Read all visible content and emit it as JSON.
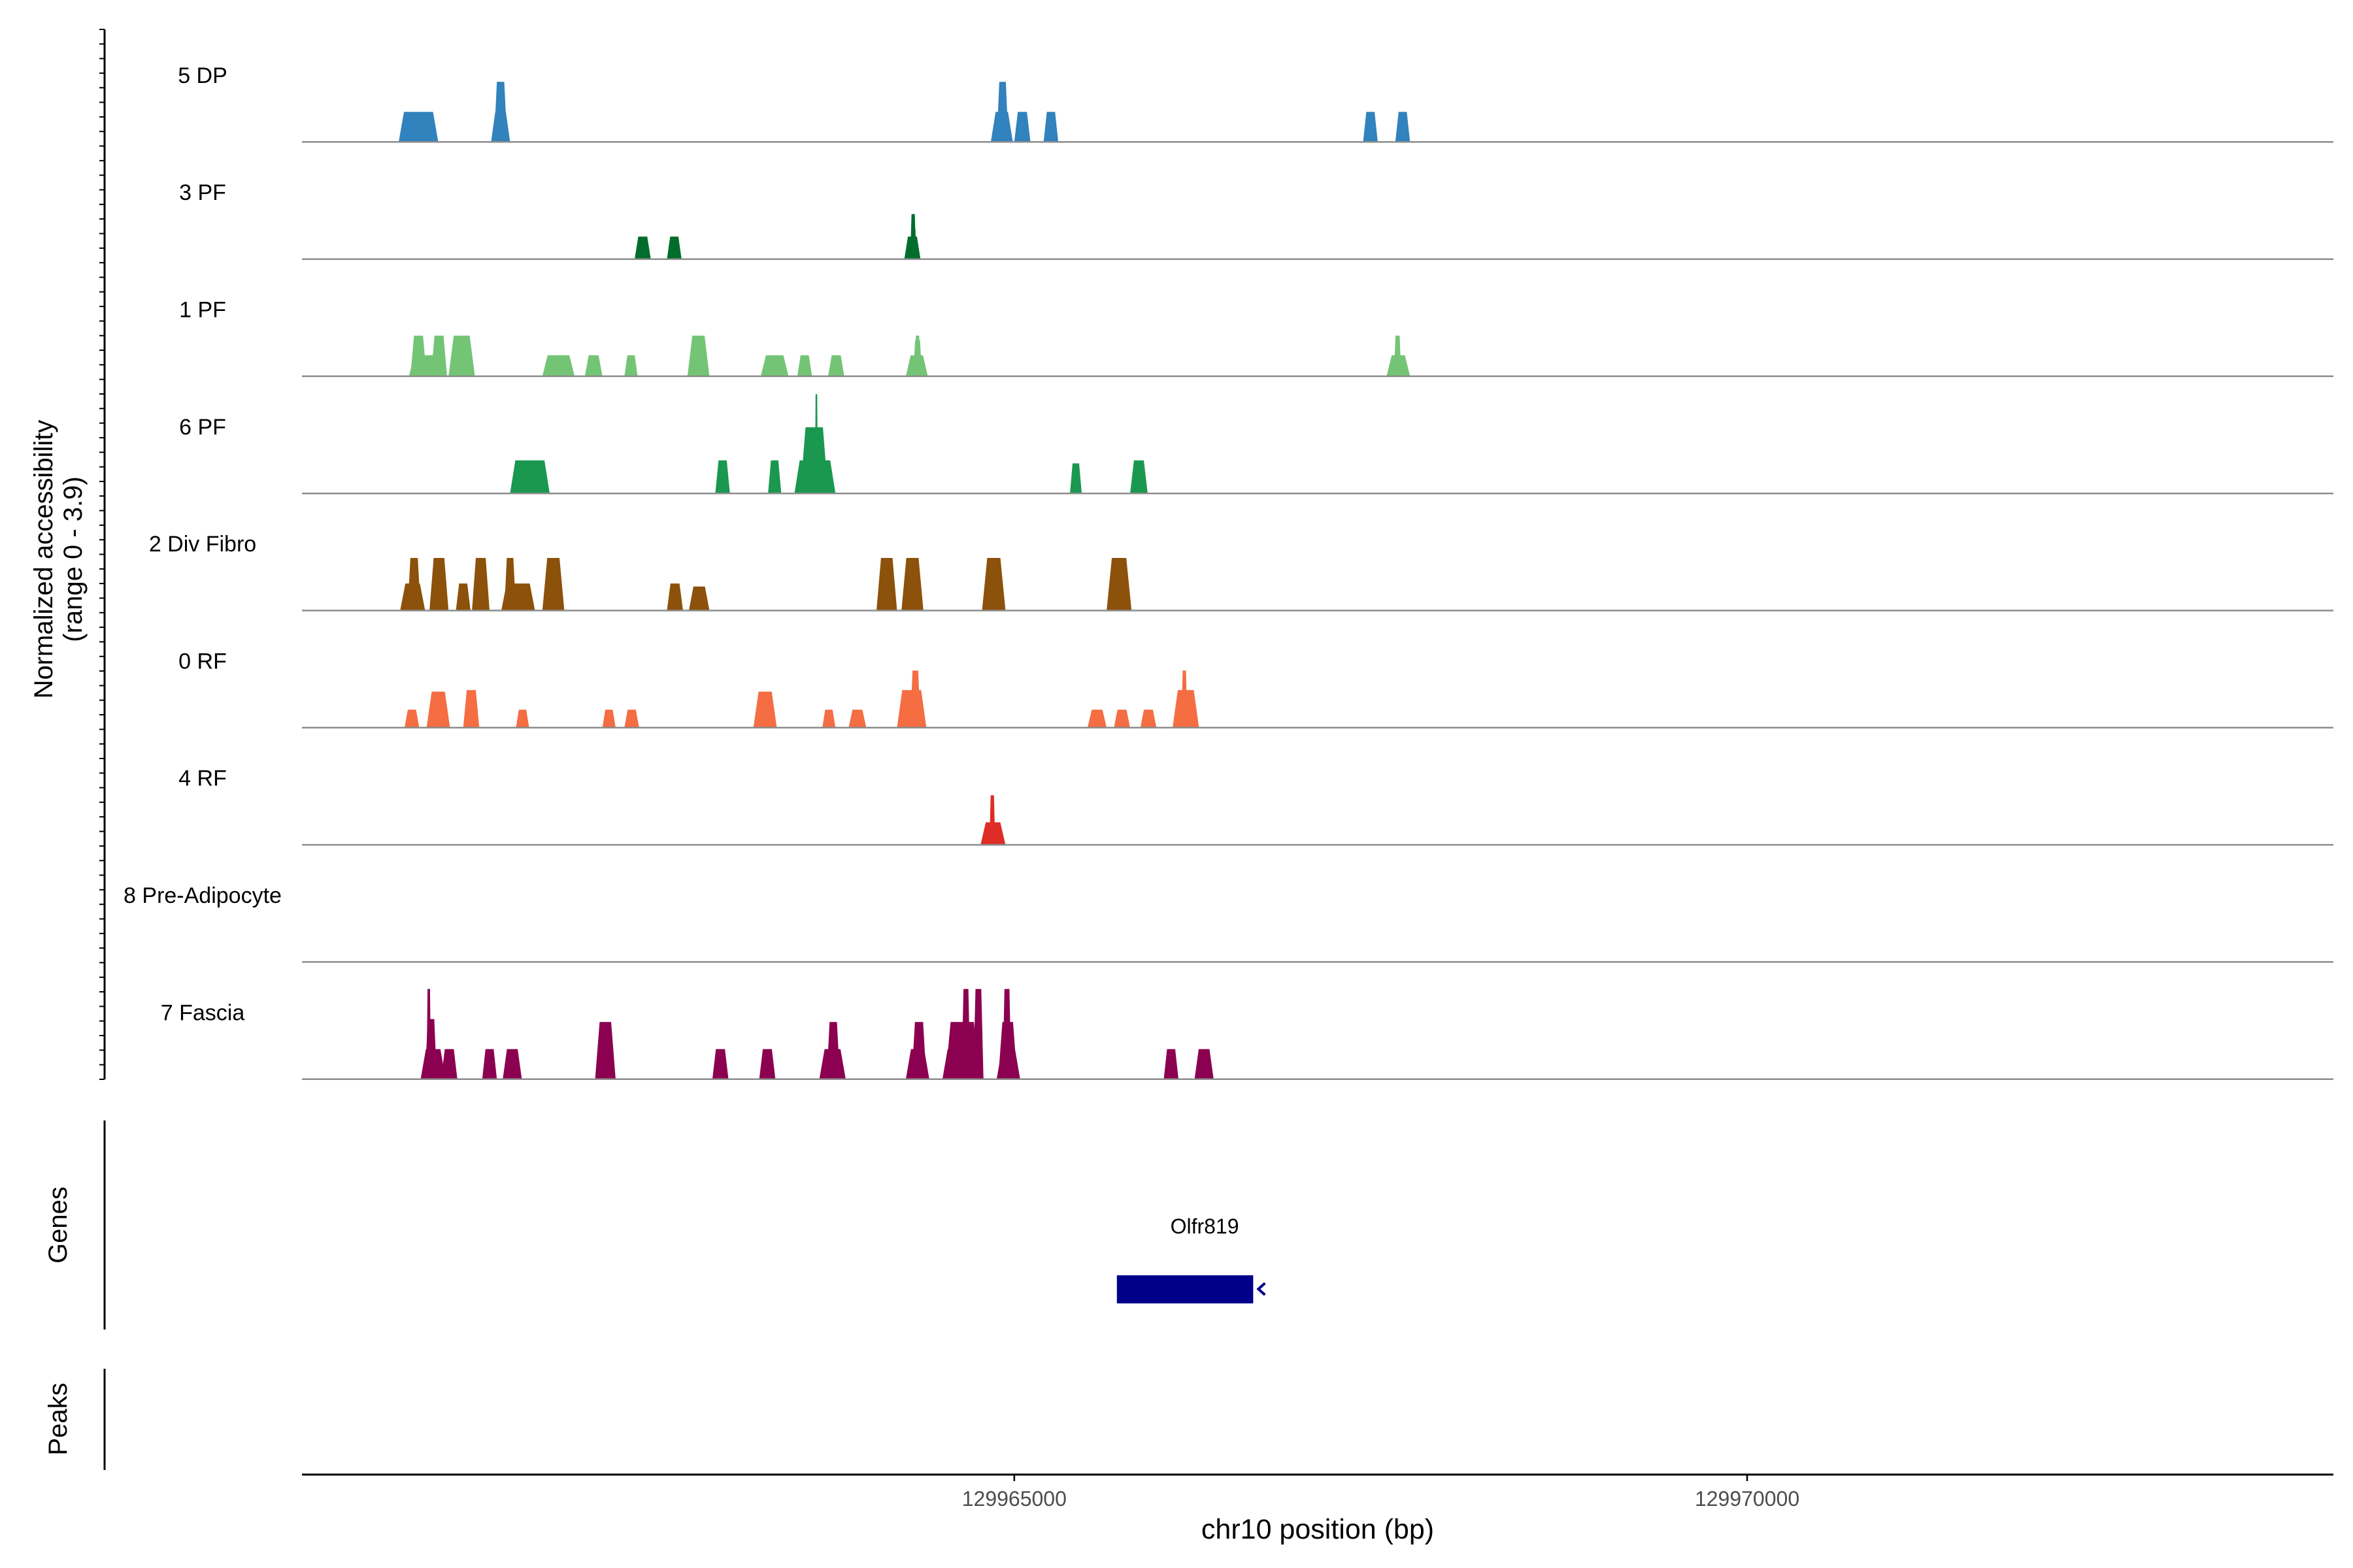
{
  "chart_data": {
    "type": "area",
    "title": "",
    "y_axis_label": "Normalized accessibility",
    "y_axis_range_label": "(range 0 - 3.9)",
    "ylim": [
      0,
      3.9
    ],
    "x_axis_label": "chr10 position (bp)",
    "xlim": [
      129960140,
      129974000
    ],
    "x_ticks": [
      {
        "value": 129965000,
        "label": "129965000"
      },
      {
        "value": 129970000,
        "label": "129970000"
      }
    ],
    "genes_track_label": "Genes",
    "peaks_track_label": "Peaks",
    "genes": [
      {
        "name": "Olfr819",
        "start": 129965700,
        "end": 129966630,
        "strand": "-",
        "color": "#00008b"
      }
    ],
    "tracks": [
      {
        "name": "5 DP",
        "color": "#3182bd",
        "peaks": [
          [
            129960850,
            129961010,
            0.4
          ],
          [
            129960800,
            129961070,
            1.0
          ],
          [
            129961450,
            129961540,
            2.0
          ],
          [
            129961430,
            129961560,
            1.0
          ],
          [
            129964880,
            129964960,
            2.0
          ],
          [
            129964840,
            129964990,
            1.0
          ],
          [
            129965000,
            129965110,
            1.0
          ],
          [
            129965200,
            129965300,
            1.0
          ],
          [
            129967380,
            129967480,
            1.0
          ],
          [
            129967600,
            129967700,
            1.0
          ]
        ]
      },
      {
        "name": "3 PF",
        "color": "#006d2c",
        "peaks": [
          [
            129962410,
            129962520,
            0.75
          ],
          [
            129962630,
            129962730,
            0.75
          ],
          [
            129964250,
            129964360,
            0.75
          ],
          [
            129964290,
            129964330,
            1.5
          ],
          [
            129964310,
            129964330,
            1.0
          ]
        ]
      },
      {
        "name": "1 PF",
        "color": "#74c476",
        "peaks": [
          [
            129960870,
            129961120,
            0.7
          ],
          [
            129960880,
            129960990,
            1.35
          ],
          [
            129961020,
            129961130,
            1.35
          ],
          [
            129961140,
            129961320,
            1.35
          ],
          [
            129961780,
            129962000,
            0.7
          ],
          [
            129962070,
            129962190,
            0.7
          ],
          [
            129962340,
            129962430,
            0.7
          ],
          [
            129962770,
            129962920,
            1.35
          ],
          [
            129963270,
            129963460,
            0.7
          ],
          [
            129963520,
            129963620,
            0.7
          ],
          [
            129963730,
            129963840,
            0.7
          ],
          [
            129964260,
            129964410,
            0.7
          ],
          [
            129964320,
            129964360,
            1.35
          ],
          [
            129964310,
            129964370,
            1.2
          ],
          [
            129967540,
            129967700,
            0.7
          ],
          [
            129967590,
            129967640,
            1.35
          ]
        ]
      },
      {
        "name": "6 PF",
        "color": "#1a9850",
        "peaks": [
          [
            129961560,
            129961830,
            1.1
          ],
          [
            129962960,
            129963060,
            1.1
          ],
          [
            129963320,
            129963410,
            1.1
          ],
          [
            129963500,
            129963780,
            1.1
          ],
          [
            129963540,
            129963730,
            2.2
          ],
          [
            129963580,
            129963690,
            2.2
          ],
          [
            129963640,
            129963660,
            3.3
          ],
          [
            129965380,
            129965460,
            1.0
          ],
          [
            129965790,
            129965910,
            1.1
          ]
        ]
      },
      {
        "name": "2 Div Fibro",
        "color": "#8c510a",
        "peaks": [
          [
            129960810,
            129960980,
            0.9
          ],
          [
            129960860,
            129960950,
            1.75
          ],
          [
            129961010,
            129961140,
            1.75
          ],
          [
            129961040,
            129961140,
            0.9
          ],
          [
            129961190,
            129961290,
            0.9
          ],
          [
            129961300,
            129961420,
            1.75
          ],
          [
            129961500,
            129961730,
            0.9
          ],
          [
            129961520,
            129961600,
            1.75
          ],
          [
            129961780,
            129961930,
            1.75
          ],
          [
            129962630,
            129962740,
            0.9
          ],
          [
            129962780,
            129962920,
            0.8
          ],
          [
            129964060,
            129964200,
            1.75
          ],
          [
            129964230,
            129964380,
            1.75
          ],
          [
            129964780,
            129964940,
            1.75
          ],
          [
            129965630,
            129965800,
            1.75
          ]
        ]
      },
      {
        "name": "0 RF",
        "color": "#f46d43",
        "peaks": [
          [
            129960840,
            129960940,
            0.6
          ],
          [
            129960990,
            129961150,
            1.2
          ],
          [
            129961060,
            129961090,
            1.2
          ],
          [
            129961240,
            129961350,
            1.25
          ],
          [
            129961600,
            129961690,
            0.6
          ],
          [
            129962190,
            129962280,
            0.6
          ],
          [
            129962340,
            129962440,
            0.6
          ],
          [
            129963220,
            129963380,
            1.2
          ],
          [
            129963690,
            129963780,
            0.6
          ],
          [
            129963870,
            129963990,
            0.6
          ],
          [
            129964200,
            129964400,
            1.25
          ],
          [
            129964290,
            129964360,
            1.9
          ],
          [
            129965500,
            129965630,
            0.6
          ],
          [
            129965680,
            129965790,
            0.6
          ],
          [
            129965860,
            129965970,
            0.6
          ],
          [
            129966080,
            129966260,
            1.25
          ],
          [
            129966140,
            129966180,
            1.9
          ]
        ]
      },
      {
        "name": "4 RF",
        "color": "#de2d26",
        "peaks": [
          [
            129964770,
            129964940,
            0.75
          ],
          [
            129964830,
            129964870,
            1.65
          ]
        ]
      },
      {
        "name": "8 Pre-Adipocyte",
        "color": "#762a83",
        "peaks": []
      },
      {
        "name": "7 Fascia",
        "color": "#8b0051",
        "peaks": [
          [
            129960950,
            129961120,
            1.0
          ],
          [
            129960980,
            129961060,
            2.0
          ],
          [
            129960990,
            129961020,
            3.0
          ],
          [
            129961090,
            129961200,
            1.0
          ],
          [
            129961370,
            129961470,
            1.0
          ],
          [
            129961510,
            129961640,
            1.0
          ],
          [
            129962140,
            129962280,
            1.9
          ],
          [
            129962150,
            129962270,
            1.0
          ],
          [
            129962940,
            129963050,
            1.0
          ],
          [
            129963260,
            129963370,
            1.0
          ],
          [
            129963670,
            129963850,
            1.0
          ],
          [
            129963720,
            129963810,
            1.9
          ],
          [
            129964260,
            129964420,
            1.0
          ],
          [
            129964300,
            129964400,
            1.9
          ],
          [
            129964510,
            129964780,
            1.0
          ],
          [
            129964530,
            129964760,
            1.9
          ],
          [
            129964640,
            129964700,
            3.0
          ],
          [
            129964720,
            129964790,
            3.0
          ],
          [
            129964880,
            129965040,
            1.0
          ],
          [
            129964890,
            129965020,
            1.9
          ],
          [
            129964920,
            129964980,
            3.0
          ],
          [
            129966020,
            129966120,
            1.0
          ],
          [
            129966230,
            129966360,
            1.0
          ]
        ]
      }
    ]
  }
}
